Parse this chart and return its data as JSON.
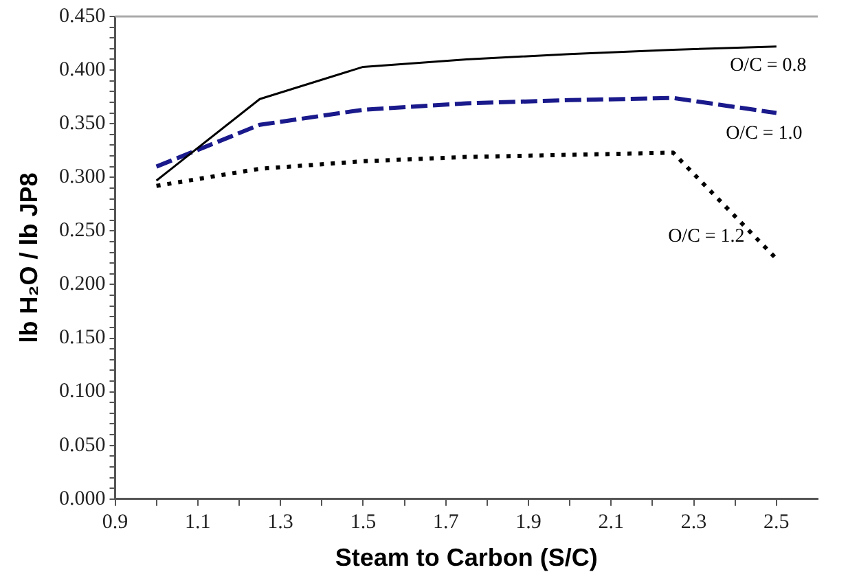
{
  "chart_data": {
    "type": "line",
    "xlabel": "Steam to Carbon (S/C)",
    "ylabel": "lb H₂O / lb JP8",
    "xlim": [
      0.9,
      2.6
    ],
    "xticks": [
      0.9,
      {
        "value": 1.0,
        "label": null
      },
      1.1,
      {
        "value": 1.2,
        "label": null
      },
      1.3,
      {
        "value": 1.4,
        "label": null
      },
      1.5,
      {
        "value": 1.6,
        "label": null
      },
      1.7,
      {
        "value": 1.8,
        "label": null
      },
      1.9,
      {
        "value": 2.0,
        "label": null
      },
      2.1,
      {
        "value": 2.2,
        "label": null
      },
      2.3,
      {
        "value": 2.4,
        "label": null
      },
      2.5
    ],
    "ylim": [
      0,
      0.45
    ],
    "yticks": [
      {
        "value": 0,
        "label": "0.000"
      },
      {
        "value": 0.01,
        "label": null
      },
      {
        "value": 0.02,
        "label": null
      },
      {
        "value": 0.03,
        "label": null
      },
      {
        "value": 0.04,
        "label": null
      },
      {
        "value": 0.05,
        "label": "0.050"
      },
      {
        "value": 0.06,
        "label": null
      },
      {
        "value": 0.07,
        "label": null
      },
      {
        "value": 0.08,
        "label": null
      },
      {
        "value": 0.09,
        "label": null
      },
      {
        "value": 0.1,
        "label": "0.100"
      },
      {
        "value": 0.11,
        "label": null
      },
      {
        "value": 0.12,
        "label": null
      },
      {
        "value": 0.13,
        "label": null
      },
      {
        "value": 0.14,
        "label": null
      },
      {
        "value": 0.15,
        "label": "0.150"
      },
      {
        "value": 0.16,
        "label": null
      },
      {
        "value": 0.17,
        "label": null
      },
      {
        "value": 0.18,
        "label": null
      },
      {
        "value": 0.19,
        "label": null
      },
      {
        "value": 0.2,
        "label": "0.200"
      },
      {
        "value": 0.21,
        "label": null
      },
      {
        "value": 0.22,
        "label": null
      },
      {
        "value": 0.23,
        "label": null
      },
      {
        "value": 0.24,
        "label": null
      },
      {
        "value": 0.25,
        "label": "0.250"
      },
      {
        "value": 0.26,
        "label": null
      },
      {
        "value": 0.27,
        "label": null
      },
      {
        "value": 0.28,
        "label": null
      },
      {
        "value": 0.29,
        "label": null
      },
      {
        "value": 0.3,
        "label": "0.300"
      },
      {
        "value": 0.31,
        "label": null
      },
      {
        "value": 0.32,
        "label": null
      },
      {
        "value": 0.33,
        "label": null
      },
      {
        "value": 0.34,
        "label": null
      },
      {
        "value": 0.35,
        "label": "0.350"
      },
      {
        "value": 0.36,
        "label": null
      },
      {
        "value": 0.37,
        "label": null
      },
      {
        "value": 0.38,
        "label": null
      },
      {
        "value": 0.39,
        "label": null
      },
      {
        "value": 0.4,
        "label": "0.400"
      },
      {
        "value": 0.41,
        "label": null
      },
      {
        "value": 0.42,
        "label": null
      },
      {
        "value": 0.43,
        "label": null
      },
      {
        "value": 0.44,
        "label": null
      },
      {
        "value": 0.45,
        "label": "0.450"
      }
    ],
    "x": [
      1.0,
      1.25,
      1.5,
      1.75,
      2.0,
      2.25,
      2.5
    ],
    "series": [
      {
        "name": "O/C = 0.8",
        "color": "#000000",
        "line_style": "solid",
        "values": [
          0.297,
          0.373,
          0.403,
          0.41,
          0.415,
          0.419,
          0.422
        ]
      },
      {
        "name": "O/C = 1.0",
        "color": "#1a1a8c",
        "line_style": "dashed",
        "values": [
          0.31,
          0.349,
          0.363,
          0.369,
          0.372,
          0.374,
          0.36
        ]
      },
      {
        "name": "O/C = 1.2",
        "color": "#000000",
        "line_style": "dotted",
        "values": [
          0.292,
          0.308,
          0.315,
          0.319,
          0.321,
          0.323,
          0.224
        ]
      }
    ],
    "grid": false,
    "legend": false,
    "marker": "none"
  }
}
